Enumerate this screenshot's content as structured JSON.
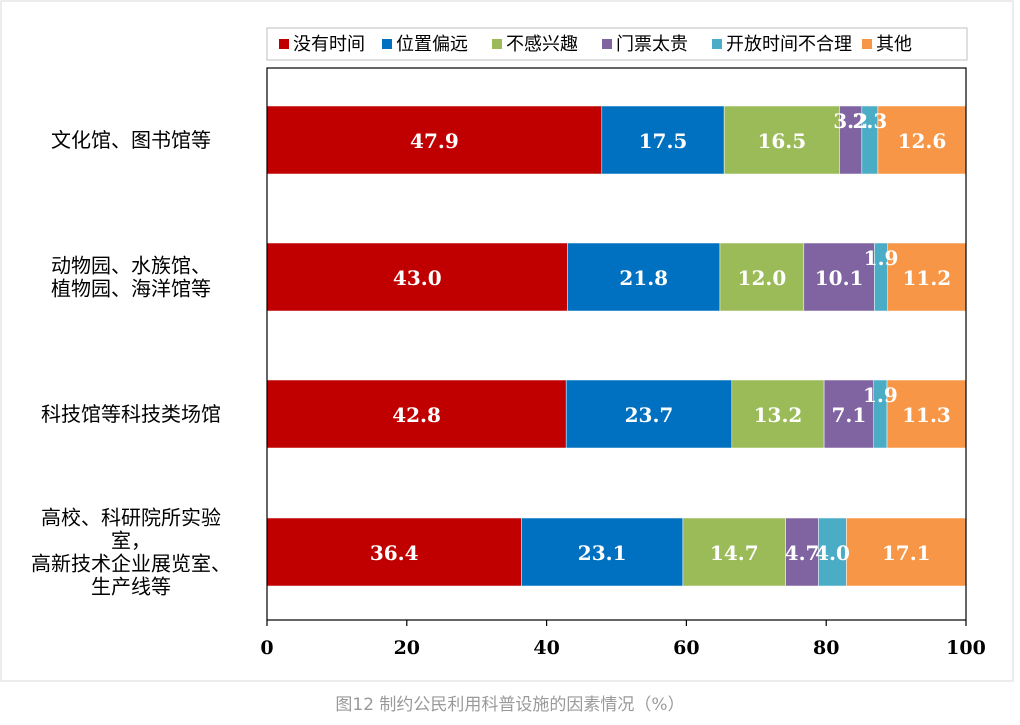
{
  "caption": "图12 制约公民利用科普设施的因素情况（%）",
  "chart_data": {
    "type": "bar",
    "orientation": "horizontal",
    "stacked": true,
    "categories": [
      [
        "文化馆、图书馆等"
      ],
      [
        "动物园、水族馆、",
        "植物园、海洋馆等"
      ],
      [
        "科技馆等科技类场馆"
      ],
      [
        "高校、科研院所实验",
        "室，",
        "高新技术企业展览室、",
        "生产线等"
      ]
    ],
    "series": [
      {
        "name": "没有时间",
        "color": "#c00000",
        "values": [
          47.9,
          43.0,
          42.8,
          36.4
        ]
      },
      {
        "name": "位置偏远",
        "color": "#0070c0",
        "values": [
          17.5,
          21.8,
          23.7,
          23.1
        ]
      },
      {
        "name": "不感兴趣",
        "color": "#9bbb59",
        "values": [
          16.5,
          12.0,
          13.2,
          14.7
        ]
      },
      {
        "name": "门票太贵",
        "color": "#8064a2",
        "values": [
          3.2,
          10.1,
          7.1,
          4.7
        ]
      },
      {
        "name": "开放时间不合理",
        "color": "#4bacc6",
        "values": [
          2.3,
          1.9,
          1.9,
          4.0
        ]
      },
      {
        "name": "其他",
        "color": "#f79646",
        "values": [
          12.6,
          11.2,
          11.3,
          17.1
        ]
      }
    ],
    "data_labels": [
      [
        "47.9",
        "43.0",
        "42.8",
        "36.4"
      ],
      [
        "17.5",
        "21.8",
        "23.7",
        "23.1"
      ],
      [
        "16.5",
        "12.0",
        "13.2",
        "14.7"
      ],
      [
        "3.2",
        "10.1",
        "7.1",
        "4.7"
      ],
      [
        "2.3",
        "1.9",
        "1.9",
        "4.0"
      ],
      [
        "12.6",
        "11.2",
        "11.3",
        "17.1"
      ]
    ],
    "xlim": [
      0,
      100
    ],
    "xticks": [
      "0",
      "20",
      "40",
      "60",
      "80",
      "100"
    ],
    "legend_position": "top",
    "grid": false
  }
}
